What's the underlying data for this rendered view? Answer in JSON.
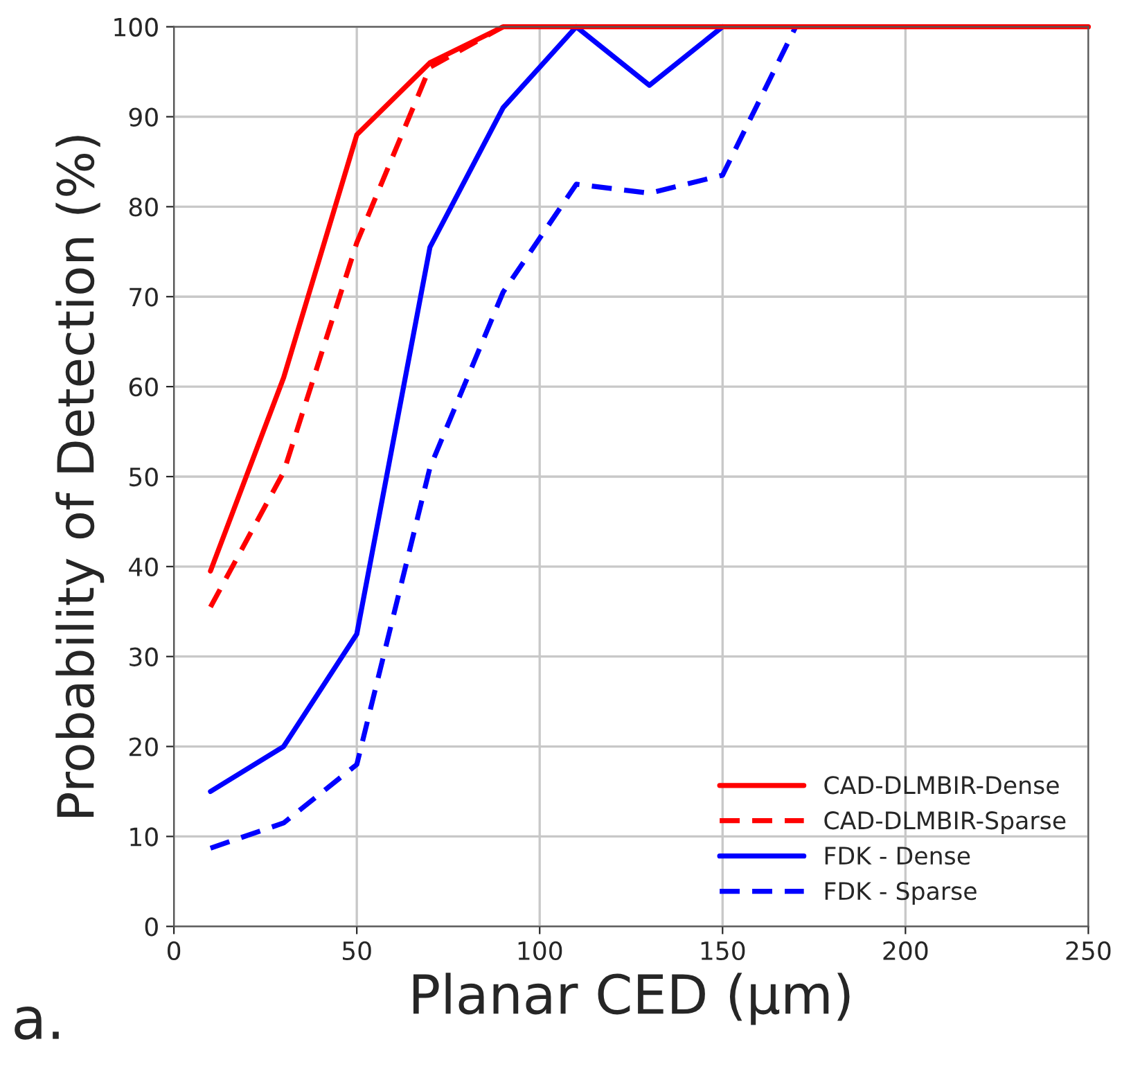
{
  "chart_data": {
    "type": "line",
    "xlabel": "Planar CED (µm)",
    "ylabel": "Probability of Detection (%)",
    "annotations": [
      "a."
    ],
    "xlim": [
      0,
      250
    ],
    "xticks": [
      0,
      50,
      100,
      150,
      200,
      250
    ],
    "ylim": [
      0,
      100
    ],
    "yticks": [
      0,
      10,
      20,
      30,
      40,
      50,
      60,
      70,
      80,
      90,
      100
    ],
    "grid": true,
    "legend": "bottom right",
    "marker": "none",
    "series": [
      {
        "name": "FDK - Sparse",
        "color": "#0000ff",
        "line_style": "dashed",
        "x": [
          10,
          30,
          50,
          70,
          90,
          110,
          130,
          150,
          170
        ],
        "values": [
          8.7,
          11.5,
          18,
          51,
          70.5,
          82.5,
          81.5,
          83.5,
          100
        ]
      },
      {
        "name": "FDK - Dense",
        "color": "#0000ff",
        "line_style": "solid",
        "x": [
          10,
          30,
          50,
          70,
          90,
          110,
          130,
          150
        ],
        "values": [
          15,
          20,
          32.5,
          75.5,
          91,
          100,
          93.5,
          100
        ]
      },
      {
        "name": "CAD-DLMBIR-Sparse",
        "color": "#ff0000",
        "line_style": "dashed",
        "x": [
          10,
          30,
          50,
          70,
          90
        ],
        "values": [
          35.5,
          50.5,
          76,
          95.5,
          100
        ]
      },
      {
        "name": "CAD-DLMBIR-Dense",
        "color": "#ff0000",
        "line_style": "solid",
        "x": [
          10,
          30,
          50,
          70,
          90,
          110,
          130,
          150,
          170,
          190,
          210,
          230,
          250
        ],
        "values": [
          39.5,
          61,
          88,
          96,
          100,
          100,
          100,
          100,
          100,
          100,
          100,
          100,
          100
        ]
      }
    ]
  }
}
